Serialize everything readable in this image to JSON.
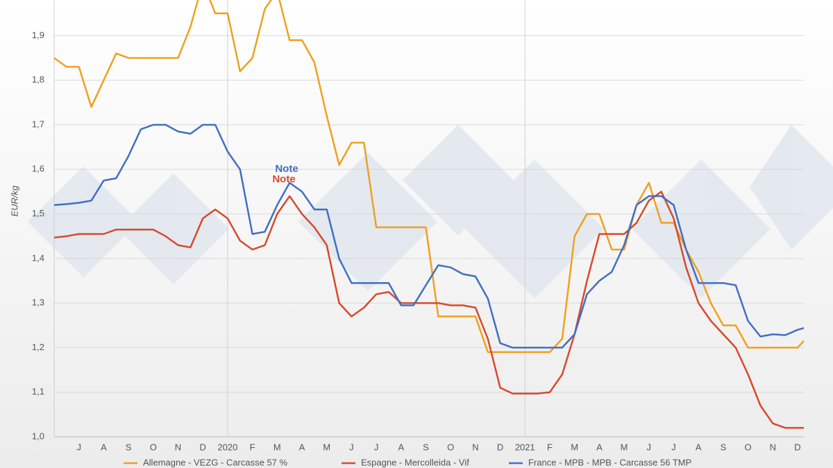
{
  "chart_data": {
    "type": "line",
    "ylabel": "EUR/kg",
    "categories": [
      null,
      null,
      "J",
      null,
      "A",
      null,
      "S",
      null,
      "O",
      null,
      "N",
      null,
      "D",
      null,
      "2020",
      null,
      "F",
      null,
      "M",
      null,
      "A",
      null,
      "M",
      null,
      "J",
      null,
      "J",
      null,
      "A",
      null,
      "S",
      null,
      "O",
      null,
      "N",
      null,
      "D",
      null,
      "2021",
      null,
      "F",
      null,
      "M",
      null,
      "A",
      null,
      "M",
      null,
      "J",
      null,
      "J",
      null,
      "A",
      null,
      "S",
      null,
      "O",
      null,
      "N",
      null,
      "D",
      null
    ],
    "series": [
      {
        "name": "Allemagne - VEZG - Carcasse 57 %",
        "color": "#f0a01e",
        "values": [
          1.85,
          1.83,
          1.83,
          1.74,
          1.8,
          1.86,
          1.85,
          1.85,
          1.85,
          1.85,
          1.85,
          1.92,
          2.02,
          1.95,
          1.95,
          1.82,
          1.85,
          1.96,
          2.0,
          1.89,
          1.89,
          1.84,
          1.72,
          1.61,
          1.66,
          1.66,
          1.47,
          1.47,
          1.47,
          1.47,
          1.47,
          1.27,
          1.27,
          1.27,
          1.27,
          1.19,
          1.19,
          1.19,
          1.19,
          1.19,
          1.19,
          1.22,
          1.45,
          1.5,
          1.5,
          1.42,
          1.42,
          1.52,
          1.57,
          1.48,
          1.48,
          1.42,
          1.37,
          1.3,
          1.25,
          1.25,
          1.2,
          1.2,
          1.2,
          1.2,
          1.2,
          1.23
        ]
      },
      {
        "name": "Espagne - Mercolleida - Vif",
        "color": "#d9482b",
        "values": [
          1.447,
          1.45,
          1.455,
          1.455,
          1.455,
          1.465,
          1.465,
          1.465,
          1.465,
          1.45,
          1.43,
          1.425,
          1.49,
          1.51,
          1.49,
          1.44,
          1.42,
          1.43,
          1.5,
          1.54,
          1.5,
          1.47,
          1.43,
          1.3,
          1.27,
          1.29,
          1.32,
          1.325,
          1.3,
          1.3,
          1.3,
          1.3,
          1.295,
          1.295,
          1.29,
          1.22,
          1.11,
          1.097,
          1.097,
          1.097,
          1.1,
          1.14,
          1.23,
          1.35,
          1.455,
          1.455,
          1.455,
          1.48,
          1.53,
          1.55,
          1.49,
          1.38,
          1.3,
          1.26,
          1.23,
          1.2,
          1.14,
          1.07,
          1.03,
          1.02,
          1.02,
          1.02
        ]
      },
      {
        "name": "France - MPB - MPB - Carcasse 56 TMP",
        "color": "#3f6fc4",
        "values": [
          1.52,
          1.522,
          1.525,
          1.53,
          1.575,
          1.58,
          1.63,
          1.69,
          1.7,
          1.7,
          1.685,
          1.68,
          1.7,
          1.7,
          1.64,
          1.6,
          1.455,
          1.46,
          1.52,
          1.57,
          1.55,
          1.51,
          1.51,
          1.4,
          1.345,
          1.345,
          1.345,
          1.345,
          1.295,
          1.295,
          1.34,
          1.385,
          1.38,
          1.365,
          1.36,
          1.31,
          1.21,
          1.2,
          1.2,
          1.2,
          1.2,
          1.2,
          1.23,
          1.32,
          1.35,
          1.37,
          1.43,
          1.52,
          1.54,
          1.54,
          1.52,
          1.42,
          1.345,
          1.345,
          1.345,
          1.34,
          1.26,
          1.225,
          1.23,
          1.228,
          1.24,
          1.248
        ]
      }
    ],
    "annotations": [
      {
        "text": "Note",
        "color": "#3f6fc4"
      },
      {
        "text": "Note",
        "color": "#d9482b"
      }
    ],
    "ylim": [
      1.0,
      1.98
    ],
    "yticks": [
      {
        "value": 1.0,
        "label": "1,0"
      },
      {
        "value": 1.1,
        "label": "1,1"
      },
      {
        "value": 1.2,
        "label": "1,2"
      },
      {
        "value": 1.3,
        "label": "1,3"
      },
      {
        "value": 1.4,
        "label": "1,4"
      },
      {
        "value": 1.5,
        "label": "1,5"
      },
      {
        "value": 1.6,
        "label": "1,6"
      },
      {
        "value": 1.7,
        "label": "1,7"
      },
      {
        "value": 1.8,
        "label": "1,8"
      },
      {
        "value": 1.9,
        "label": "1,9"
      }
    ],
    "grid": true,
    "legend": "bottom"
  }
}
